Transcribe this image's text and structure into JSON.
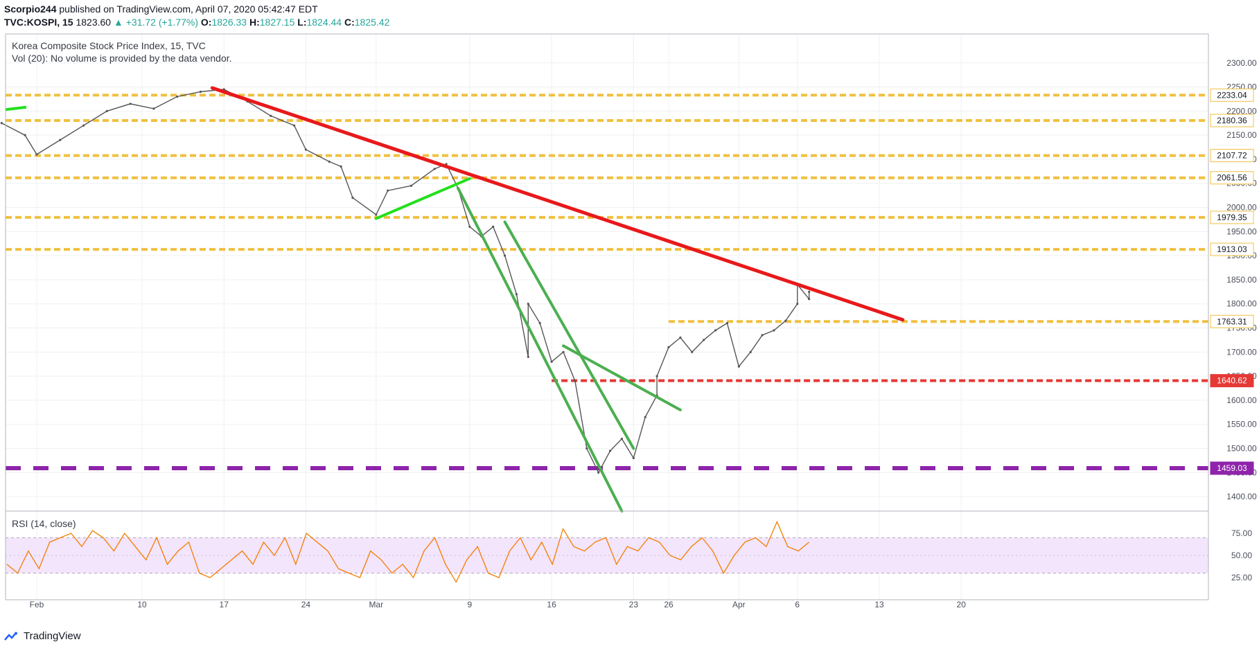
{
  "header": {
    "author": "Scorpio244",
    "published": "published on TradingView.com, April 07, 2020 05:42:47 EDT",
    "symbol": "TVC:KOSPI, 15",
    "last": "1823.60",
    "change_arrow": "▲",
    "change": "+31.72 (+1.77%)",
    "o_label": "O:",
    "o": "1826.33",
    "h_label": "H:",
    "h": "1827.15",
    "l_label": "L:",
    "l": "1824.44",
    "c_label": "C:",
    "c": "1825.42"
  },
  "legend": {
    "title": "Korea Composite Stock Price Index, 15, TVC",
    "volume": "Vol (20): No volume is provided by the data vendor.",
    "rsi": "RSI (14, close)"
  },
  "footer": {
    "brand": "TradingView"
  },
  "colors": {
    "up": "#26a69a",
    "candle": "#555555",
    "rsi_line": "#f57c00",
    "rsi_band": "#f3e5fb",
    "resistance": "#f0c040",
    "trendline_red": "#e8191b",
    "trendline_green": "#4caf50",
    "bright_green": "#22e01c",
    "support_red": "#e53935",
    "purple": "#8e24aa"
  },
  "chart_data": [
    {
      "type": "line",
      "title": "Korea Composite Stock Price Index, 15, TVC",
      "ylim": [
        1370,
        2360
      ],
      "y_ticks": [
        1400,
        1450,
        1500,
        1550,
        1600,
        1650,
        1700,
        1750,
        1800,
        1850,
        1900,
        1950,
        2000,
        2050,
        2100,
        2150,
        2200,
        2250,
        2300
      ],
      "x_ticks": [
        "Feb",
        "10",
        "17",
        "24",
        "Mar",
        "9",
        "16",
        "23",
        "26",
        "Apr",
        "6",
        "13",
        "20"
      ],
      "x_tick_dates": [
        "2020-02-01",
        "2020-02-10",
        "2020-02-17",
        "2020-02-24",
        "2020-03-01",
        "2020-03-09",
        "2020-03-16",
        "2020-03-23",
        "2020-03-26",
        "2020-04-01",
        "2020-04-06",
        "2020-04-13",
        "2020-04-20"
      ],
      "price_path": [
        [
          "2020-01-29",
          2175
        ],
        [
          "2020-01-31",
          2150
        ],
        [
          "2020-02-01",
          2110
        ],
        [
          "2020-02-03",
          2140
        ],
        [
          "2020-02-05",
          2170
        ],
        [
          "2020-02-07",
          2200
        ],
        [
          "2020-02-09",
          2215
        ],
        [
          "2020-02-11",
          2205
        ],
        [
          "2020-02-13",
          2230
        ],
        [
          "2020-02-15",
          2240
        ],
        [
          "2020-02-17",
          2245
        ],
        [
          "2020-02-19",
          2220
        ],
        [
          "2020-02-21",
          2190
        ],
        [
          "2020-02-23",
          2170
        ],
        [
          "2020-02-24",
          2120
        ],
        [
          "2020-02-26",
          2095
        ],
        [
          "2020-02-27",
          2085
        ],
        [
          "2020-02-28",
          2020
        ],
        [
          "2020-03-01",
          1985
        ],
        [
          "2020-03-02",
          2035
        ],
        [
          "2020-03-04",
          2045
        ],
        [
          "2020-03-06",
          2080
        ],
        [
          "2020-03-07",
          2090
        ],
        [
          "2020-03-08",
          2040
        ],
        [
          "2020-03-09",
          1960
        ],
        [
          "2020-03-10",
          1940
        ],
        [
          "2020-03-11",
          1960
        ],
        [
          "2020-03-12",
          1900
        ],
        [
          "2020-03-13",
          1820
        ],
        [
          "2020-03-14",
          1690
        ],
        [
          "2020-03-14",
          1800
        ],
        [
          "2020-03-15",
          1760
        ],
        [
          "2020-03-16",
          1680
        ],
        [
          "2020-03-17",
          1700
        ],
        [
          "2020-03-18",
          1640
        ],
        [
          "2020-03-19",
          1500
        ],
        [
          "2020-03-20",
          1450
        ],
        [
          "2020-03-21",
          1495
        ],
        [
          "2020-03-22",
          1520
        ],
        [
          "2020-03-23",
          1480
        ],
        [
          "2020-03-24",
          1565
        ],
        [
          "2020-03-25",
          1610
        ],
        [
          "2020-03-25",
          1650
        ],
        [
          "2020-03-26",
          1710
        ],
        [
          "2020-03-27",
          1730
        ],
        [
          "2020-03-28",
          1700
        ],
        [
          "2020-03-29",
          1725
        ],
        [
          "2020-03-30",
          1745
        ],
        [
          "2020-03-31",
          1760
        ],
        [
          "2020-04-01",
          1670
        ],
        [
          "2020-04-02",
          1700
        ],
        [
          "2020-04-03",
          1735
        ],
        [
          "2020-04-04",
          1745
        ],
        [
          "2020-04-05",
          1765
        ],
        [
          "2020-04-06",
          1800
        ],
        [
          "2020-04-06",
          1840
        ],
        [
          "2020-04-07",
          1810
        ],
        [
          "2020-04-07",
          1825
        ]
      ],
      "horizontal_levels": [
        {
          "value": 2233.04,
          "label": "2233.04",
          "style": "dashed",
          "color": "#f0c040"
        },
        {
          "value": 2180.36,
          "label": "2180.36",
          "style": "dashed",
          "color": "#f0c040"
        },
        {
          "value": 2107.72,
          "label": "2107.72",
          "style": "dashed",
          "color": "#f0c040"
        },
        {
          "value": 2061.56,
          "label": "2061.56",
          "style": "dashed",
          "color": "#f0c040"
        },
        {
          "value": 1979.35,
          "label": "1979.35",
          "style": "dashed",
          "color": "#f0c040"
        },
        {
          "value": 1913.03,
          "label": "1913.03",
          "style": "dashed",
          "color": "#f0c040"
        },
        {
          "value": 1763.31,
          "label": "1763.31",
          "style": "dashed",
          "color": "#f0c040"
        },
        {
          "value": 1640.62,
          "label": "1640.62",
          "style": "dashed",
          "color": "#e53935"
        },
        {
          "value": 1459.03,
          "label": "1459.03",
          "style": "dashed",
          "color": "#8e24aa"
        }
      ],
      "trendlines": [
        {
          "color": "#e8191b",
          "from": [
            "2020-02-16",
            2248
          ],
          "to": [
            "2020-04-15",
            1767
          ]
        },
        {
          "color": "#22e01c",
          "from": [
            "2020-03-01",
            1977
          ],
          "to": [
            "2020-03-09",
            2060
          ]
        },
        {
          "color": "#4caf50",
          "from": [
            "2020-03-08",
            2040
          ],
          "to": [
            "2020-03-22",
            1370
          ]
        },
        {
          "color": "#4caf50",
          "from": [
            "2020-03-12",
            1970
          ],
          "to": [
            "2020-03-23",
            1500
          ]
        },
        {
          "color": "#4caf50",
          "from": [
            "2020-03-17",
            1713
          ],
          "to": [
            "2020-03-27",
            1580
          ]
        }
      ]
    },
    {
      "type": "line",
      "title": "RSI (14, close)",
      "ylim": [
        0,
        100
      ],
      "y_ticks": [
        25,
        50,
        75
      ],
      "band": [
        30,
        70
      ],
      "series": [
        {
          "values": [
            40,
            30,
            55,
            35,
            65,
            70,
            75,
            60,
            78,
            70,
            55,
            75,
            60,
            45,
            70,
            40,
            55,
            65,
            30,
            25,
            35,
            45,
            55,
            40,
            65,
            50,
            70,
            40,
            75,
            65,
            55,
            35,
            30,
            25,
            55,
            45,
            30,
            40,
            25,
            55,
            70,
            40,
            20,
            45,
            60,
            30,
            25,
            55,
            70,
            45,
            65,
            40,
            80,
            60,
            55,
            65,
            70,
            40,
            60,
            55,
            70,
            65,
            50,
            45,
            60,
            70,
            55,
            30,
            50,
            65,
            70,
            60,
            88,
            60,
            55,
            65
          ]
        }
      ]
    }
  ]
}
